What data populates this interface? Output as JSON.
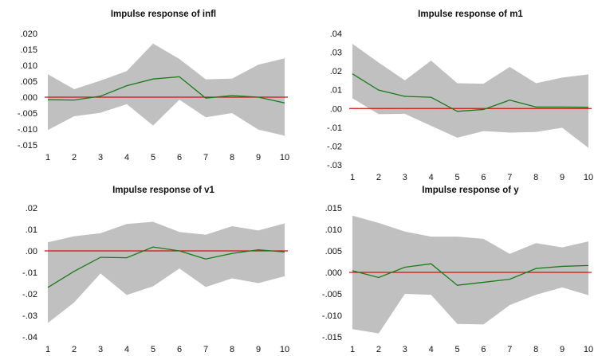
{
  "colors": {
    "band": "#c0c0c0",
    "line": "#1a7a1a",
    "zero": "#d01010",
    "text": "#111111"
  },
  "chart_data": [
    {
      "type": "line",
      "title": "Impulse response of infl",
      "x": [
        1,
        2,
        3,
        4,
        5,
        6,
        7,
        8,
        9,
        10
      ],
      "ylim": [
        -0.015,
        0.02
      ],
      "yticks": [
        ".020",
        ".015",
        ".010",
        ".005",
        ".000",
        "-.005",
        "-.010",
        "-.015"
      ],
      "ytick_values": [
        0.02,
        0.015,
        0.01,
        0.005,
        0.0,
        -0.005,
        -0.01,
        -0.015
      ],
      "response": [
        -0.0008,
        -0.0009,
        0.0003,
        0.0036,
        0.0057,
        0.0064,
        -0.0003,
        0.0005,
        0.0,
        -0.0018
      ],
      "upper": [
        0.0072,
        0.0025,
        0.0052,
        0.0082,
        0.0168,
        0.012,
        0.0056,
        0.0058,
        0.0102,
        0.0122
      ],
      "lower": [
        -0.0103,
        -0.006,
        -0.0049,
        -0.0022,
        -0.0089,
        -0.0008,
        -0.0063,
        -0.005,
        -0.0102,
        -0.0121
      ]
    },
    {
      "type": "line",
      "title": "Impulse response of m1",
      "x": [
        1,
        2,
        3,
        4,
        5,
        6,
        7,
        8,
        9,
        10
      ],
      "ylim": [
        -0.03,
        0.04
      ],
      "yticks": [
        ".04",
        ".03",
        ".02",
        ".01",
        ".00",
        "-.01",
        "-.02",
        "-.03"
      ],
      "ytick_values": [
        0.04,
        0.03,
        0.02,
        0.01,
        0.0,
        -0.01,
        -0.02,
        -0.03
      ],
      "response": [
        0.0185,
        0.0098,
        0.0065,
        0.006,
        -0.0015,
        -0.0005,
        0.0045,
        0.0008,
        0.0008,
        0.0007
      ],
      "upper": [
        0.0345,
        0.0245,
        0.015,
        0.0255,
        0.0135,
        0.0132,
        0.0222,
        0.0135,
        0.0165,
        0.0182
      ],
      "lower": [
        0.0055,
        -0.003,
        -0.0028,
        -0.0092,
        -0.0155,
        -0.012,
        -0.0128,
        -0.0125,
        -0.0102,
        -0.021
      ]
    },
    {
      "type": "line",
      "title": "Impulse response of v1",
      "x": [
        1,
        2,
        3,
        4,
        5,
        6,
        7,
        8,
        9,
        10
      ],
      "ylim": [
        -0.04,
        0.02
      ],
      "yticks": [
        ".02",
        ".01",
        ".00",
        "-.01",
        "-.02",
        "-.03",
        "-.04"
      ],
      "ytick_values": [
        0.02,
        0.01,
        0.0,
        -0.01,
        -0.02,
        -0.03,
        -0.04
      ],
      "response": [
        -0.017,
        -0.0095,
        -0.003,
        -0.0032,
        0.0018,
        0.0,
        -0.0038,
        -0.0012,
        0.0005,
        -0.0005
      ],
      "upper": [
        0.004,
        0.0068,
        0.0082,
        0.0125,
        0.0135,
        0.0088,
        0.0075,
        0.0115,
        0.0095,
        0.0128
      ],
      "lower": [
        -0.0335,
        -0.024,
        -0.0105,
        -0.0205,
        -0.0165,
        -0.0082,
        -0.0168,
        -0.0128,
        -0.015,
        -0.0118
      ]
    },
    {
      "type": "line",
      "title": "Impulse response of y",
      "x": [
        1,
        2,
        3,
        4,
        5,
        6,
        7,
        8,
        9,
        10
      ],
      "ylim": [
        -0.015,
        0.015
      ],
      "yticks": [
        ".015",
        ".010",
        ".005",
        ".000",
        "-.005",
        "-.010",
        "-.015"
      ],
      "ytick_values": [
        0.015,
        0.01,
        0.005,
        0.0,
        -0.005,
        -0.01,
        -0.015
      ],
      "response": [
        0.0004,
        -0.0012,
        0.0012,
        0.002,
        -0.003,
        -0.0023,
        -0.0016,
        0.0009,
        0.0014,
        0.0016
      ],
      "upper": [
        0.0132,
        0.0115,
        0.0095,
        0.0083,
        0.0083,
        0.0078,
        0.0043,
        0.0068,
        0.0058,
        0.0072
      ],
      "lower": [
        -0.0132,
        -0.0142,
        -0.005,
        -0.0052,
        -0.012,
        -0.0121,
        -0.0076,
        -0.0052,
        -0.0035,
        -0.0053
      ]
    }
  ]
}
